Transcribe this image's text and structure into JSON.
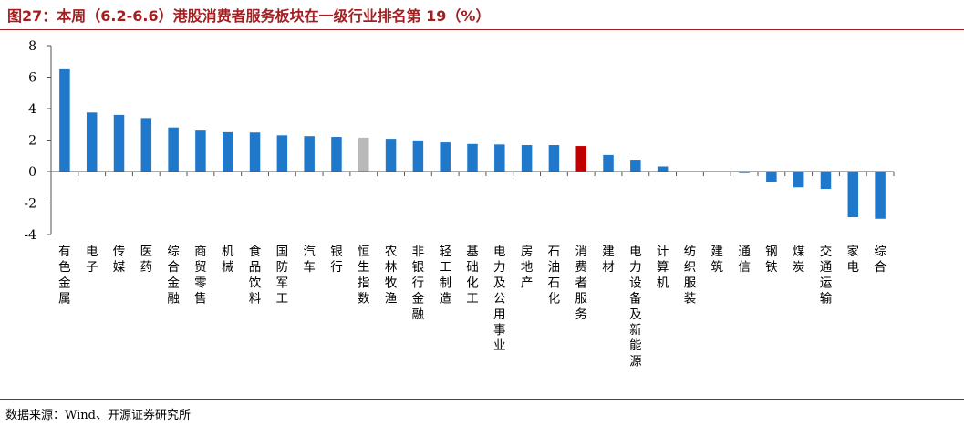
{
  "title": "图27：本周（6.2-6.6）港股消费者服务板块在一级行业排名第 19（%）",
  "source": "数据来源：Wind、开源证券研究所",
  "colors": {
    "title": "#a51d20",
    "bar_default": "#1f78c9",
    "bar_index": "#b9b9b9",
    "bar_highlight": "#c00000",
    "axis": "#555555"
  },
  "chart_data": {
    "type": "bar",
    "title": "",
    "xlabel": "",
    "ylabel": "",
    "ylim": [
      -4,
      8
    ],
    "yticks": [
      -4,
      -2,
      0,
      2,
      4,
      6,
      8
    ],
    "grid": false,
    "legend": "none",
    "categories": [
      "有色金属",
      "电子",
      "传媒",
      "医药",
      "综合金融",
      "商贸零售",
      "机械",
      "食品饮料",
      "国防军工",
      "汽车",
      "银行",
      "恒生指数",
      "农林牧渔",
      "非银行金融",
      "轻工制造",
      "基础化工",
      "电力及公用事业",
      "房地产",
      "石油石化",
      "消费者服务",
      "建材",
      "电力设备及新能源",
      "计算机",
      "纺织服装",
      "建筑",
      "通信",
      "钢铁",
      "煤炭",
      "交通运输",
      "家电",
      "综合"
    ],
    "values": [
      6.5,
      3.75,
      3.6,
      3.4,
      2.8,
      2.6,
      2.5,
      2.48,
      2.3,
      2.25,
      2.2,
      2.15,
      2.08,
      1.98,
      1.85,
      1.75,
      1.72,
      1.68,
      1.68,
      1.62,
      1.05,
      0.75,
      0.32,
      0.0,
      0.0,
      -0.1,
      -0.65,
      -1.0,
      -1.1,
      -2.9,
      -3.0
    ],
    "highlight": {
      "消费者服务": "bar_highlight",
      "恒生指数": "bar_index"
    }
  }
}
